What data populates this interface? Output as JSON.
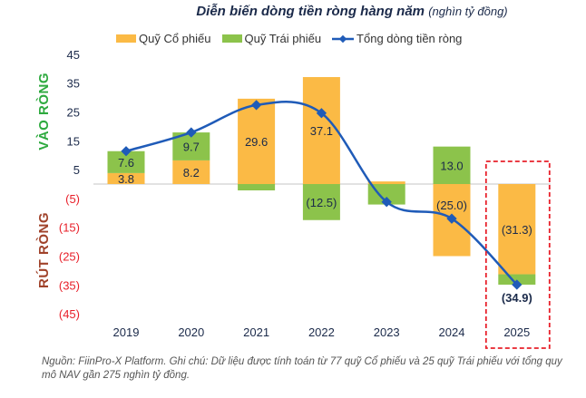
{
  "chart_data": {
    "type": "bar",
    "title": "Diễn biến dòng tiền ròng hàng năm",
    "subtitle": "(nghìn tỷ đồng)",
    "categories": [
      "2019",
      "2020",
      "2021",
      "2022",
      "2023",
      "2024",
      "2025"
    ],
    "series": [
      {
        "name": "Quỹ Cổ phiếu",
        "type": "bar",
        "color": "#FBBA45",
        "values": [
          3.8,
          8.2,
          29.6,
          37.1,
          0.9,
          -25.0,
          -31.3
        ],
        "labels": [
          "3.8",
          "8.2",
          "29.6",
          "37.1",
          "",
          "(25.0)",
          "(31.3)"
        ]
      },
      {
        "name": "Quỹ Trái phiếu",
        "type": "bar",
        "color": "#8CC34B",
        "values": [
          7.6,
          9.7,
          -2.2,
          -12.5,
          -7.1,
          13.0,
          -3.6
        ],
        "labels": [
          "7.6",
          "9.7",
          "",
          "(12.5)",
          "",
          "13.0",
          ""
        ]
      },
      {
        "name": "Tổng dòng tiền ròng",
        "type": "line",
        "color": "#1F5BB8",
        "values": [
          11.4,
          17.9,
          27.4,
          24.6,
          -6.2,
          -12.0,
          -34.9
        ],
        "labels": [
          "",
          "",
          "",
          "",
          "",
          "",
          "(34.9)"
        ]
      }
    ],
    "stacked": true,
    "ylim": [
      -45,
      45
    ],
    "yticks": [
      "45",
      "35",
      "25",
      "15",
      "5",
      "(5)",
      "(15)",
      "(25)",
      "(35)",
      "(45)"
    ],
    "ytick_values": [
      45,
      35,
      25,
      15,
      5,
      -5,
      -15,
      -25,
      -35,
      -45
    ],
    "grid": false,
    "legend": "top",
    "highlight": "2025",
    "highlight_color": "#E8202A",
    "side_labels": {
      "positive": "VÀO RÒNG",
      "negative": "RÚT RÒNG",
      "positive_color": "#2EAA3F",
      "negative_color": "#A0422A"
    },
    "neg_tick_color": "#E8202A"
  },
  "note": "Nguồn: FiinPro-X Platform. Ghi chú: Dữ liệu được tính toán từ 77 quỹ Cổ phiếu và 25 quỹ Trái phiếu với tổng quy mô NAV gần 275 nghìn tỷ đồng."
}
